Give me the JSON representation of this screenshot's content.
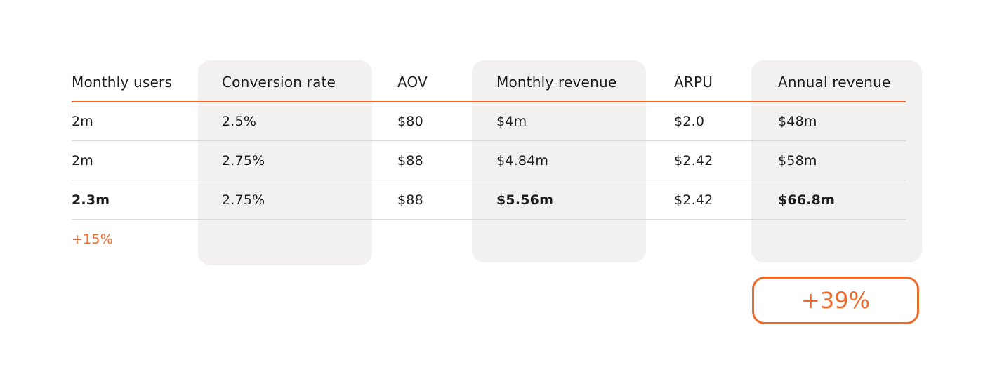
{
  "table": {
    "headers": [
      "Monthly users",
      "Conversion rate",
      "AOV",
      "Monthly revenue",
      "ARPU",
      "Annual revenue"
    ],
    "rows": [
      [
        "2m",
        "2.5%",
        "$80",
        "$4m",
        "$2.0",
        "$48m"
      ],
      [
        "2m",
        "2.75%",
        "$88",
        "$4.84m",
        "$2.42",
        "$58m"
      ],
      [
        "2.3m",
        "2.75%",
        "$88",
        "$5.56m",
        "$2.42",
        "$66.8m"
      ]
    ],
    "users_change": "+15%"
  },
  "result": {
    "annual_change": "+39%"
  },
  "colors": {
    "accent": "#ef6a2a",
    "highlight_column_bg": "#f2f1f0",
    "rule": "#d6d6d6",
    "text": "#1e1e1e"
  }
}
